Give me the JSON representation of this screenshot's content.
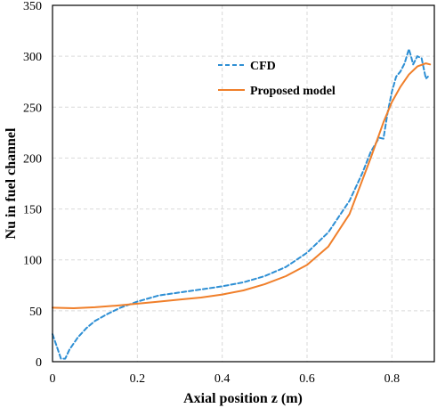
{
  "chart_data": {
    "type": "line",
    "title": "",
    "xlabel": "Axial position z (m)",
    "ylabel": "Nu in fuel channel",
    "xlim": [
      0,
      0.9
    ],
    "ylim": [
      0,
      350
    ],
    "xticks": [
      0,
      0.2,
      0.4,
      0.6,
      0.8
    ],
    "yticks": [
      0,
      50,
      100,
      150,
      200,
      250,
      300,
      350
    ],
    "grid": true,
    "legend_position": "upper-center",
    "series": [
      {
        "name": "CFD",
        "color": "#2e8fd4",
        "line_style": "dashed",
        "x": [
          0.0,
          0.01,
          0.02,
          0.03,
          0.04,
          0.06,
          0.08,
          0.1,
          0.13,
          0.16,
          0.2,
          0.25,
          0.3,
          0.35,
          0.4,
          0.45,
          0.5,
          0.55,
          0.6,
          0.65,
          0.7,
          0.73,
          0.75,
          0.77,
          0.78,
          0.79,
          0.8,
          0.81,
          0.82,
          0.83,
          0.84,
          0.845,
          0.85,
          0.86,
          0.87,
          0.88,
          0.885
        ],
        "y": [
          27,
          15,
          3,
          3,
          12,
          24,
          33,
          40,
          47,
          53,
          59,
          65,
          68,
          71,
          74,
          78,
          84,
          93,
          107,
          127,
          158,
          185,
          206,
          220,
          219,
          245,
          265,
          280,
          285,
          293,
          307,
          300,
          292,
          300,
          298,
          278,
          280
        ]
      },
      {
        "name": "Proposed model",
        "color": "#f07f2a",
        "line_style": "solid",
        "x": [
          0.0,
          0.05,
          0.1,
          0.15,
          0.2,
          0.25,
          0.3,
          0.35,
          0.4,
          0.45,
          0.5,
          0.55,
          0.6,
          0.65,
          0.7,
          0.75,
          0.78,
          0.8,
          0.82,
          0.84,
          0.86,
          0.88,
          0.89
        ],
        "y": [
          53,
          52.5,
          53.5,
          55,
          57,
          59,
          61,
          63,
          66,
          70,
          76,
          84,
          95,
          113,
          145,
          200,
          235,
          255,
          270,
          282,
          290,
          293,
          292
        ]
      }
    ]
  }
}
